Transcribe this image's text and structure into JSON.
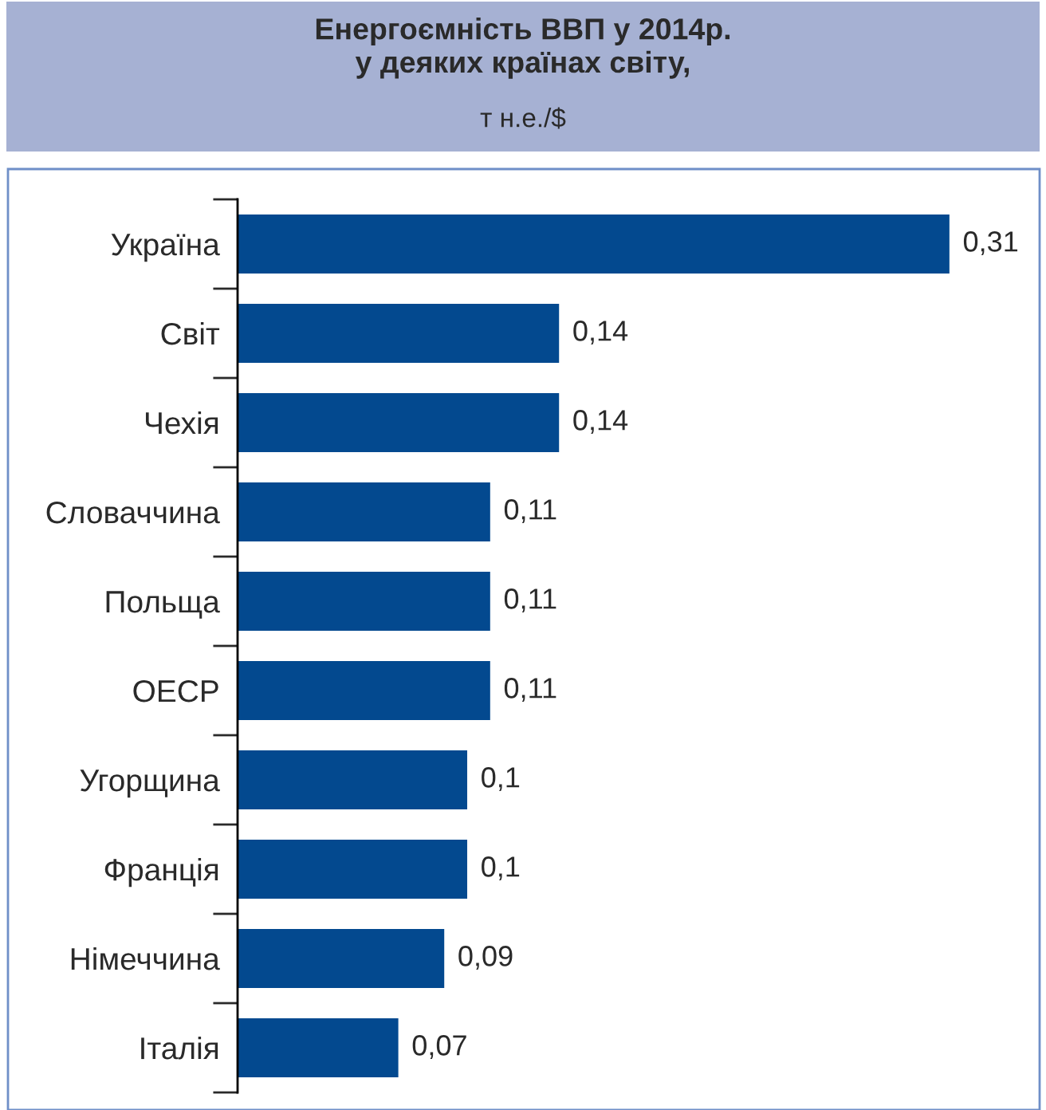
{
  "chart_data": {
    "type": "bar",
    "orientation": "horizontal",
    "title": "Енергоємність ВВП у 2014р.\nу деяких країнах світу,",
    "subtitle": "т н.е./$",
    "categories": [
      "Україна",
      "Світ",
      "Чехія",
      "Словаччина",
      "Польща",
      "ОЕСР",
      "Угорщина",
      "Франція",
      "Німеччина",
      "Італія"
    ],
    "values": [
      0.31,
      0.14,
      0.14,
      0.11,
      0.11,
      0.11,
      0.1,
      0.1,
      0.09,
      0.07
    ],
    "value_labels": [
      "0,31",
      "0,14",
      "0,14",
      "0,11",
      "0,11",
      "0,11",
      "0,1",
      "0,1",
      "0,09",
      "0,07"
    ],
    "color": "#03498f",
    "tick_labels": "y",
    "grid": false
  }
}
